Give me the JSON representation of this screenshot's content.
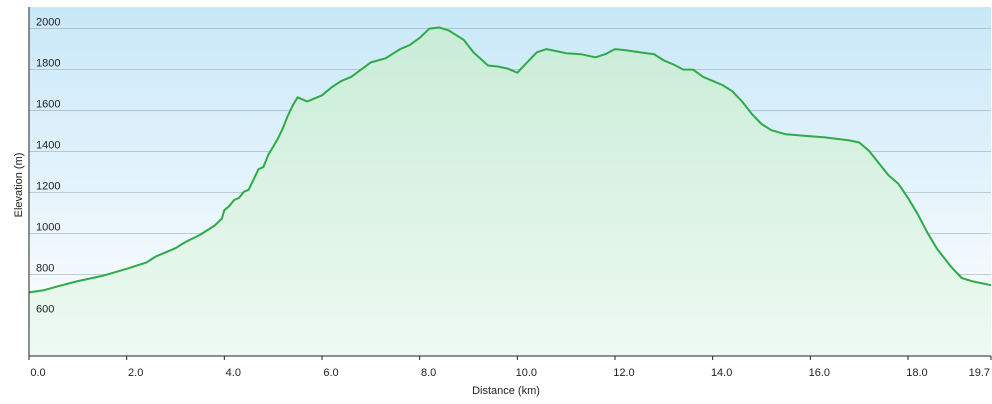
{
  "chart_data": {
    "type": "area",
    "xlabel": "Distance  (km)",
    "ylabel": "Elevation (m)",
    "xlim": [
      0,
      19.7
    ],
    "ylim": [
      400,
      2100
    ],
    "x_ticks": [
      {
        "value": 0,
        "label": "0.0"
      },
      {
        "value": 2,
        "label": "2.0"
      },
      {
        "value": 4,
        "label": "4.0"
      },
      {
        "value": 6,
        "label": "6.0"
      },
      {
        "value": 8,
        "label": "8.0"
      },
      {
        "value": 10,
        "label": "10.0"
      },
      {
        "value": 12,
        "label": "12.0"
      },
      {
        "value": 14,
        "label": "14.0"
      },
      {
        "value": 16,
        "label": "16.0"
      },
      {
        "value": 18,
        "label": "18.0"
      },
      {
        "value": 19.7,
        "label": "19.7"
      }
    ],
    "y_ticks": [
      {
        "value": 600,
        "label": "600"
      },
      {
        "value": 800,
        "label": "800"
      },
      {
        "value": 1000,
        "label": "1000"
      },
      {
        "value": 1200,
        "label": "1200"
      },
      {
        "value": 1400,
        "label": "1400"
      },
      {
        "value": 1600,
        "label": "1600"
      },
      {
        "value": 1800,
        "label": "1800"
      },
      {
        "value": 2000,
        "label": "2000"
      }
    ],
    "grid": true,
    "colors": {
      "line": "#2eaa48",
      "fill_top": "#c9ecd7",
      "fill_bottom": "#eefaf2",
      "bg_top": "#c8e8f8",
      "bg_bottom": "#ffffff",
      "grid": "#9aa6ae",
      "axis": "#222222"
    },
    "series": [
      {
        "x": [
          0,
          0.3,
          0.6,
          1.0,
          1.5,
          2.0,
          2.4,
          2.6,
          2.8,
          3.0,
          3.2,
          3.5,
          3.8,
          3.95,
          4.0,
          4.1,
          4.2,
          4.3,
          4.4,
          4.5,
          4.6,
          4.7,
          4.8,
          4.9,
          5.0,
          5.1,
          5.2,
          5.3,
          5.4,
          5.5,
          5.6,
          5.7,
          5.8,
          6.0,
          6.2,
          6.4,
          6.6,
          6.8,
          7.0,
          7.3,
          7.6,
          7.8,
          8.0,
          8.2,
          8.4,
          8.6,
          8.9,
          9.1,
          9.4,
          9.6,
          9.8,
          10.0,
          10.2,
          10.4,
          10.6,
          10.8,
          11.0,
          11.3,
          11.6,
          11.8,
          12.0,
          12.2,
          12.5,
          12.8,
          13.0,
          13.2,
          13.4,
          13.6,
          13.8,
          14.0,
          14.2,
          14.4,
          14.6,
          14.8,
          15.0,
          15.2,
          15.5,
          16.0,
          16.3,
          16.8,
          17.0,
          17.2,
          17.3,
          17.4,
          17.6,
          17.8,
          18.0,
          18.2,
          18.4,
          18.6,
          18.9,
          19.1,
          19.3,
          19.7
        ],
        "y": [
          710,
          720,
          740,
          765,
          790,
          825,
          855,
          885,
          905,
          925,
          955,
          990,
          1035,
          1070,
          1110,
          1130,
          1160,
          1170,
          1200,
          1210,
          1260,
          1310,
          1320,
          1380,
          1420,
          1460,
          1510,
          1570,
          1620,
          1660,
          1650,
          1640,
          1650,
          1670,
          1710,
          1740,
          1760,
          1795,
          1830,
          1850,
          1895,
          1915,
          1950,
          1995,
          2000,
          1985,
          1940,
          1880,
          1815,
          1810,
          1800,
          1780,
          1830,
          1880,
          1895,
          1885,
          1875,
          1870,
          1855,
          1870,
          1895,
          1890,
          1880,
          1870,
          1840,
          1820,
          1795,
          1795,
          1760,
          1740,
          1720,
          1690,
          1640,
          1580,
          1530,
          1500,
          1480,
          1470,
          1465,
          1450,
          1440,
          1400,
          1370,
          1340,
          1280,
          1240,
          1170,
          1090,
          1000,
          920,
          830,
          780,
          765,
          745
        ]
      }
    ]
  }
}
